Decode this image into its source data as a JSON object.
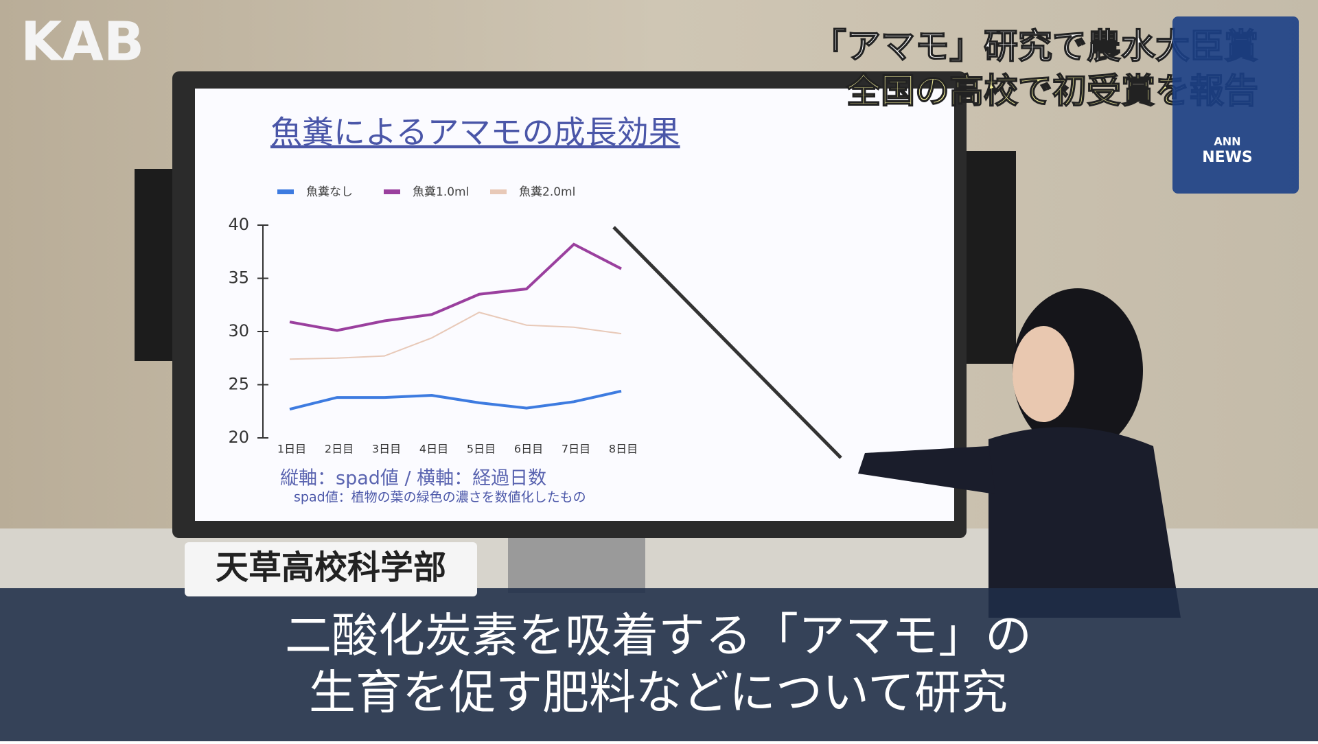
{
  "logo": "KAB",
  "headline": {
    "line1": "「アマモ」研究で農水大臣賞",
    "line2": "全国の高校で初受賞を報告"
  },
  "badge": {
    "top": "ANN",
    "bottom": "NEWS"
  },
  "name_tag": "天草高校科学部",
  "subtitle": {
    "line1": "二酸化炭素を吸着する「アマモ」の",
    "line2": "生育を促す肥料などについて研究"
  },
  "chart_data": {
    "type": "line",
    "title": "魚糞によるアマモの成長効果",
    "categories": [
      "1日目",
      "2日目",
      "3日目",
      "4日目",
      "5日目",
      "6日目",
      "7日目",
      "8日目"
    ],
    "series": [
      {
        "name": "魚糞なし",
        "color": "#3d7be0",
        "values": [
          22.7,
          23.8,
          23.8,
          24.0,
          23.3,
          22.8,
          23.4,
          24.4
        ]
      },
      {
        "name": "魚糞1.0ml",
        "color": "#9a3f9e",
        "values": [
          30.9,
          30.1,
          31.0,
          31.6,
          33.5,
          34.0,
          38.2,
          35.9
        ]
      },
      {
        "name": "魚糞2.0ml",
        "color": "#e8c9b8",
        "values": [
          27.4,
          27.5,
          27.7,
          29.4,
          31.8,
          30.6,
          30.4,
          29.8
        ]
      }
    ],
    "ylim": [
      20,
      40
    ],
    "yticks": [
      20,
      25,
      30,
      35,
      40
    ],
    "axis_note": "縦軸：spad値 / 横軸：経過日数",
    "footnote": "spad値：植物の葉の緑色の濃さを数値化したもの"
  }
}
